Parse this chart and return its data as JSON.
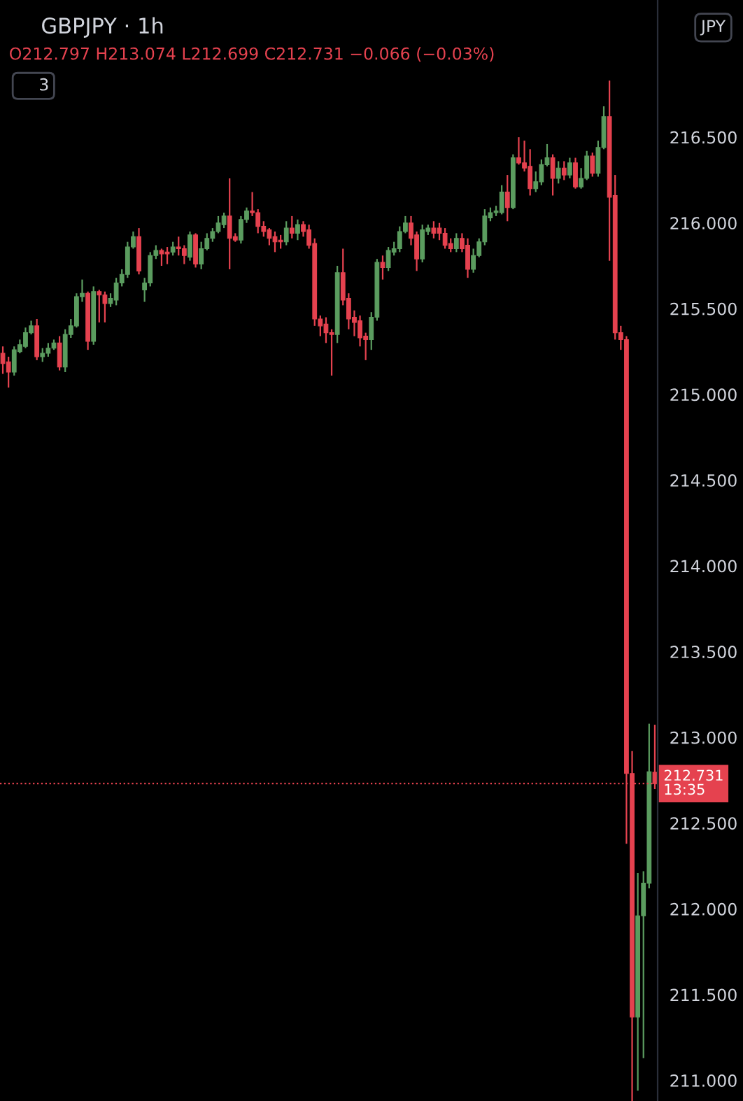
{
  "chart_data": {
    "type": "candlestick",
    "title": "GBPJPY · 1h",
    "annotations": [
      "O212.797 H213.074 L212.699 C212.731 −0.066 (−0.03%)",
      "13:35",
      "JPY",
      "3"
    ],
    "categories": [
      null,
      null,
      null,
      null,
      null,
      null,
      null,
      null,
      null,
      null,
      null,
      null,
      null,
      null,
      null,
      null,
      null,
      null,
      null,
      null,
      null,
      null,
      null,
      null,
      null,
      null,
      null,
      null,
      null,
      null,
      null,
      null,
      null,
      null,
      null,
      null,
      null,
      null,
      null,
      null,
      null,
      null,
      null,
      null,
      null,
      null,
      null,
      null,
      null,
      null,
      null,
      null,
      null,
      null,
      null,
      null,
      null,
      null,
      null,
      null,
      null,
      null,
      null,
      null,
      null,
      null,
      null,
      null,
      null,
      null,
      null,
      null,
      null,
      null,
      null,
      null,
      null,
      null,
      null,
      null,
      null,
      null,
      null,
      null,
      null,
      null,
      null,
      null,
      null,
      null,
      null,
      null,
      null,
      null,
      null,
      null,
      null,
      null,
      null,
      null,
      null,
      null,
      null,
      null,
      null,
      null,
      null,
      null,
      null,
      null,
      null,
      null,
      null,
      null,
      null,
      null
    ],
    "ohlc": [
      [
        215.24,
        215.28,
        215.12,
        215.18
      ],
      [
        215.19,
        215.22,
        215.04,
        215.13
      ],
      [
        215.13,
        215.28,
        215.11,
        215.26
      ],
      [
        215.25,
        215.32,
        215.24,
        215.29
      ],
      [
        215.28,
        215.39,
        215.27,
        215.36
      ],
      [
        215.36,
        215.43,
        215.35,
        215.4
      ],
      [
        215.4,
        215.44,
        215.2,
        215.22
      ],
      [
        215.22,
        215.27,
        215.19,
        215.24
      ],
      [
        215.24,
        215.3,
        215.22,
        215.27
      ],
      [
        215.27,
        215.32,
        215.26,
        215.3
      ],
      [
        215.3,
        215.34,
        215.14,
        215.16
      ],
      [
        215.16,
        215.38,
        215.13,
        215.35
      ],
      [
        215.35,
        215.44,
        215.33,
        215.4
      ],
      [
        215.4,
        215.59,
        215.39,
        215.57
      ],
      [
        215.57,
        215.67,
        215.54,
        215.59
      ],
      [
        215.59,
        215.6,
        215.26,
        215.31
      ],
      [
        215.31,
        215.63,
        215.29,
        215.6
      ],
      [
        215.6,
        215.61,
        215.42,
        215.58
      ],
      [
        215.58,
        215.6,
        215.42,
        215.53
      ],
      [
        215.53,
        215.59,
        215.51,
        215.56
      ],
      [
        215.55,
        215.68,
        215.52,
        215.65
      ],
      [
        215.65,
        215.73,
        215.63,
        215.7
      ],
      [
        215.7,
        215.89,
        215.68,
        215.86
      ],
      [
        215.86,
        215.95,
        215.85,
        215.92
      ],
      [
        215.92,
        215.97,
        215.7,
        215.72
      ],
      [
        215.61,
        215.68,
        215.54,
        215.65
      ],
      [
        215.65,
        215.83,
        215.63,
        215.81
      ],
      [
        215.81,
        215.87,
        215.79,
        215.84
      ],
      [
        215.84,
        215.85,
        215.75,
        215.82
      ],
      [
        215.83,
        215.86,
        215.76,
        215.82
      ],
      [
        215.83,
        215.89,
        215.81,
        215.86
      ],
      [
        215.86,
        215.92,
        215.81,
        215.85
      ],
      [
        215.85,
        215.87,
        215.76,
        215.81
      ],
      [
        215.8,
        215.95,
        215.78,
        215.93
      ],
      [
        215.93,
        215.94,
        215.74,
        215.76
      ],
      [
        215.76,
        215.89,
        215.73,
        215.85
      ],
      [
        215.85,
        215.94,
        215.84,
        215.91
      ],
      [
        215.91,
        215.97,
        215.89,
        215.95
      ],
      [
        215.95,
        216.04,
        215.94,
        216.0
      ],
      [
        215.99,
        216.06,
        215.97,
        216.04
      ],
      [
        216.04,
        216.26,
        215.73,
        215.91
      ],
      [
        215.92,
        215.94,
        215.89,
        215.9
      ],
      [
        215.9,
        216.04,
        215.88,
        216.02
      ],
      [
        216.02,
        216.09,
        216.0,
        216.07
      ],
      [
        216.07,
        216.18,
        216.04,
        216.06
      ],
      [
        216.06,
        216.08,
        215.94,
        215.98
      ],
      [
        215.98,
        216.01,
        215.92,
        215.95
      ],
      [
        215.96,
        215.97,
        215.87,
        215.91
      ],
      [
        215.92,
        215.95,
        215.83,
        215.89
      ],
      [
        215.9,
        215.93,
        215.85,
        215.89
      ],
      [
        215.89,
        216.01,
        215.87,
        215.97
      ],
      [
        215.97,
        216.04,
        215.91,
        215.94
      ],
      [
        215.94,
        216.02,
        215.9,
        215.99
      ],
      [
        215.99,
        216.01,
        215.92,
        215.95
      ],
      [
        215.96,
        215.99,
        215.85,
        215.87
      ],
      [
        215.88,
        215.91,
        215.4,
        215.44
      ],
      [
        215.44,
        215.46,
        215.34,
        215.4
      ],
      [
        215.41,
        215.45,
        215.3,
        215.36
      ],
      [
        215.36,
        215.38,
        215.11,
        215.35
      ],
      [
        215.35,
        215.75,
        215.3,
        215.71
      ],
      [
        215.71,
        215.85,
        215.52,
        215.55
      ],
      [
        215.56,
        215.59,
        215.38,
        215.44
      ],
      [
        215.45,
        215.49,
        215.34,
        215.42
      ],
      [
        215.43,
        215.46,
        215.28,
        215.33
      ],
      [
        215.34,
        215.36,
        215.2,
        215.32
      ],
      [
        215.32,
        215.48,
        215.26,
        215.45
      ],
      [
        215.45,
        215.79,
        215.43,
        215.77
      ],
      [
        215.77,
        215.81,
        215.67,
        215.74
      ],
      [
        215.74,
        215.86,
        215.72,
        215.84
      ],
      [
        215.83,
        215.89,
        215.81,
        215.85
      ],
      [
        215.85,
        215.98,
        215.83,
        215.95
      ],
      [
        215.95,
        216.04,
        215.94,
        216.0
      ],
      [
        216.0,
        216.04,
        215.87,
        215.91
      ],
      [
        215.93,
        215.95,
        215.72,
        215.79
      ],
      [
        215.79,
        215.99,
        215.77,
        215.96
      ],
      [
        215.95,
        215.99,
        215.93,
        215.97
      ],
      [
        215.97,
        216.01,
        215.91,
        215.94
      ],
      [
        215.97,
        216.0,
        215.9,
        215.94
      ],
      [
        215.94,
        215.97,
        215.85,
        215.87
      ],
      [
        215.88,
        215.91,
        215.83,
        215.85
      ],
      [
        215.85,
        215.94,
        215.83,
        215.91
      ],
      [
        215.91,
        215.94,
        215.83,
        215.85
      ],
      [
        215.87,
        215.91,
        215.68,
        215.73
      ],
      [
        215.73,
        215.85,
        215.71,
        215.81
      ],
      [
        215.81,
        215.91,
        215.8,
        215.89
      ],
      [
        215.89,
        216.08,
        215.87,
        216.04
      ],
      [
        216.03,
        216.09,
        216.01,
        216.06
      ],
      [
        216.06,
        216.1,
        216.04,
        216.07
      ],
      [
        216.06,
        216.22,
        216.05,
        216.18
      ],
      [
        216.18,
        216.28,
        216.01,
        216.09
      ],
      [
        216.09,
        216.4,
        216.08,
        216.38
      ],
      [
        216.38,
        216.5,
        216.34,
        216.35
      ],
      [
        216.35,
        216.48,
        216.3,
        216.32
      ],
      [
        216.33,
        216.43,
        216.16,
        216.2
      ],
      [
        216.2,
        216.3,
        216.18,
        216.24
      ],
      [
        216.24,
        216.37,
        216.22,
        216.34
      ],
      [
        216.34,
        216.46,
        216.33,
        216.38
      ],
      [
        216.38,
        216.4,
        216.16,
        216.26
      ],
      [
        216.26,
        216.36,
        216.23,
        216.32
      ],
      [
        216.32,
        216.36,
        216.25,
        216.28
      ],
      [
        216.28,
        216.38,
        216.26,
        216.35
      ],
      [
        216.35,
        216.38,
        216.2,
        216.21
      ],
      [
        216.21,
        216.32,
        216.2,
        216.26
      ],
      [
        216.26,
        216.42,
        216.25,
        216.39
      ],
      [
        216.39,
        216.41,
        216.27,
        216.29
      ],
      [
        216.29,
        216.48,
        216.27,
        216.44
      ],
      [
        216.44,
        216.68,
        216.43,
        216.62
      ],
      [
        216.62,
        216.83,
        215.78,
        216.15
      ],
      [
        216.16,
        216.28,
        215.32,
        215.36
      ],
      [
        215.36,
        215.4,
        215.26,
        215.32
      ],
      [
        215.32,
        215.34,
        212.38,
        212.79
      ],
      [
        212.79,
        212.92,
        210.88,
        211.37
      ],
      [
        211.37,
        212.21,
        210.94,
        211.96
      ],
      [
        211.96,
        212.22,
        211.13,
        212.15
      ],
      [
        212.15,
        213.08,
        212.12,
        212.8
      ],
      [
        212.797,
        213.074,
        212.699,
        212.731
      ]
    ],
    "colors": [
      "#e5424f",
      "#e5424f",
      "#5b9c5f",
      "#5b9c5f",
      "#5b9c5f",
      "#5b9c5f",
      "#e5424f",
      "#5b9c5f",
      "#5b9c5f",
      "#5b9c5f",
      "#e5424f",
      "#5b9c5f",
      "#5b9c5f",
      "#5b9c5f",
      "#5b9c5f",
      "#e5424f",
      "#5b9c5f",
      "#e5424f",
      "#e5424f",
      "#5b9c5f",
      "#5b9c5f",
      "#5b9c5f",
      "#5b9c5f",
      "#5b9c5f",
      "#e5424f",
      "#5b9c5f",
      "#5b9c5f",
      "#5b9c5f",
      "#e5424f",
      "#e5424f",
      "#5b9c5f",
      "#e5424f",
      "#e5424f",
      "#5b9c5f",
      "#e5424f",
      "#5b9c5f",
      "#5b9c5f",
      "#5b9c5f",
      "#5b9c5f",
      "#5b9c5f",
      "#e5424f",
      "#e5424f",
      "#5b9c5f",
      "#5b9c5f",
      "#e5424f",
      "#e5424f",
      "#e5424f",
      "#e5424f",
      "#e5424f",
      "#e5424f",
      "#5b9c5f",
      "#e5424f",
      "#5b9c5f",
      "#e5424f",
      "#e5424f",
      "#e5424f",
      "#e5424f",
      "#e5424f",
      "#e5424f",
      "#5b9c5f",
      "#e5424f",
      "#e5424f",
      "#e5424f",
      "#e5424f",
      "#e5424f",
      "#5b9c5f",
      "#5b9c5f",
      "#e5424f",
      "#5b9c5f",
      "#5b9c5f",
      "#5b9c5f",
      "#5b9c5f",
      "#e5424f",
      "#e5424f",
      "#5b9c5f",
      "#5b9c5f",
      "#e5424f",
      "#e5424f",
      "#e5424f",
      "#e5424f",
      "#5b9c5f",
      "#e5424f",
      "#e5424f",
      "#5b9c5f",
      "#5b9c5f",
      "#5b9c5f",
      "#5b9c5f",
      "#5b9c5f",
      "#5b9c5f",
      "#e5424f",
      "#5b9c5f",
      "#e5424f",
      "#e5424f",
      "#e5424f",
      "#5b9c5f",
      "#5b9c5f",
      "#5b9c5f",
      "#e5424f",
      "#5b9c5f",
      "#e5424f",
      "#5b9c5f",
      "#e5424f",
      "#5b9c5f",
      "#5b9c5f",
      "#e5424f",
      "#5b9c5f",
      "#5b9c5f",
      "#e5424f",
      "#e5424f",
      "#e5424f",
      "#e5424f",
      "#e5424f",
      "#5b9c5f",
      "#5b9c5f",
      "#5b9c5f",
      "#e5424f"
    ],
    "ylim": [
      210.88,
      217.3
    ],
    "yticks": [
      {
        "value": 211.0,
        "label": "211.000"
      },
      {
        "value": 211.5,
        "label": "211.500"
      },
      {
        "value": 212.0,
        "label": "212.000"
      },
      {
        "value": 212.5,
        "label": "212.500"
      },
      {
        "value": 213.0,
        "label": "213.000"
      },
      {
        "value": 213.5,
        "label": "213.500"
      },
      {
        "value": 214.0,
        "label": "214.000"
      },
      {
        "value": 214.5,
        "label": "214.500"
      },
      {
        "value": 215.0,
        "label": "215.000"
      },
      {
        "value": 215.5,
        "label": "215.500"
      },
      {
        "value": 216.0,
        "label": "216.000"
      },
      {
        "value": 216.5,
        "label": "216.500"
      }
    ],
    "ref_lines": [
      {
        "axis": "y",
        "value": 212.731,
        "label": "212.731",
        "color": "#e5424f",
        "line_style": "dotted"
      }
    ],
    "tick_labels": "y",
    "grid": false,
    "legend": false
  }
}
